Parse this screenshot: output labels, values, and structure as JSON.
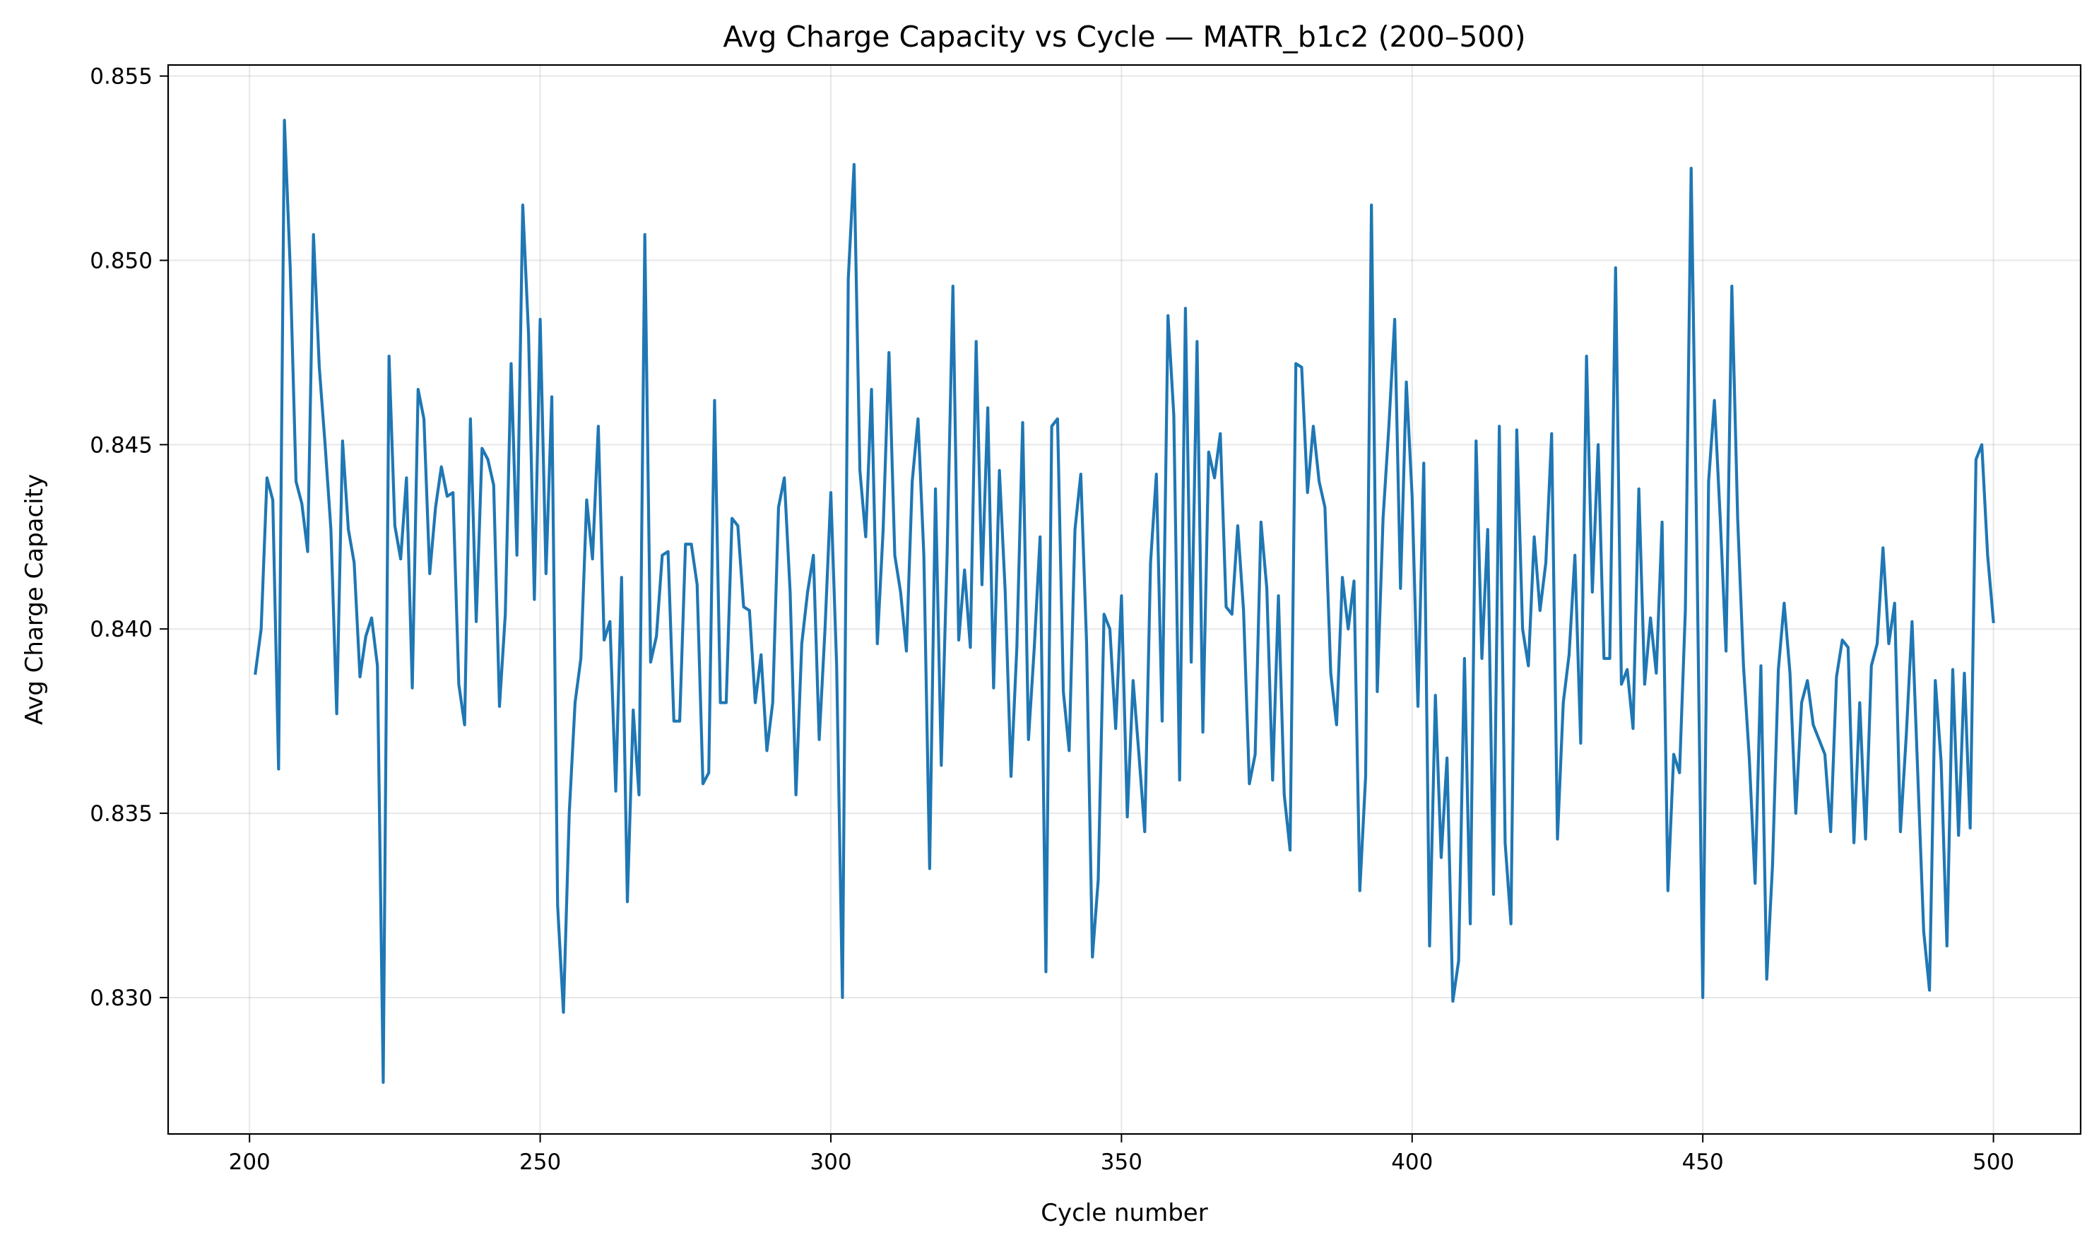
{
  "chart_data": {
    "type": "line",
    "title": "Avg Charge Capacity vs Cycle — MATR_b1c2 (200–500)",
    "xlabel": "Cycle number",
    "ylabel": "Avg Charge Capacity",
    "xlim": [
      186,
      515
    ],
    "ylim": [
      0.8263,
      0.8553
    ],
    "xticks": [
      200,
      250,
      300,
      350,
      400,
      450,
      500
    ],
    "xtick_labels": [
      "200",
      "250",
      "300",
      "350",
      "400",
      "450",
      "500"
    ],
    "yticks": [
      0.83,
      0.835,
      0.84,
      0.845,
      0.85,
      0.855
    ],
    "ytick_labels": [
      "0.830",
      "0.835",
      "0.840",
      "0.845",
      "0.850",
      "0.855"
    ],
    "grid": true,
    "legend": "none",
    "series": [
      {
        "color": "#1f77b4",
        "x_start": 201,
        "x_step": 1,
        "values": [
          0.8388,
          0.84,
          0.8441,
          0.8435,
          0.8362,
          0.8538,
          0.8498,
          0.844,
          0.8434,
          0.8421,
          0.8507,
          0.8471,
          0.845,
          0.8427,
          0.8377,
          0.8451,
          0.8427,
          0.8418,
          0.8387,
          0.8398,
          0.8403,
          0.839,
          0.8277,
          0.8474,
          0.8428,
          0.8419,
          0.8441,
          0.8384,
          0.8465,
          0.8457,
          0.8415,
          0.8433,
          0.8444,
          0.8436,
          0.8437,
          0.8385,
          0.8374,
          0.8457,
          0.8402,
          0.8449,
          0.8446,
          0.8439,
          0.8379,
          0.8404,
          0.8472,
          0.842,
          0.8515,
          0.848,
          0.8408,
          0.8484,
          0.8415,
          0.8463,
          0.8325,
          0.8296,
          0.835,
          0.838,
          0.8392,
          0.8435,
          0.8419,
          0.8455,
          0.8397,
          0.8402,
          0.8356,
          0.8414,
          0.8326,
          0.8378,
          0.8355,
          0.8507,
          0.8391,
          0.8398,
          0.842,
          0.8421,
          0.8375,
          0.8375,
          0.8423,
          0.8423,
          0.8412,
          0.8358,
          0.8361,
          0.8462,
          0.838,
          0.838,
          0.843,
          0.8428,
          0.8406,
          0.8405,
          0.838,
          0.8393,
          0.8367,
          0.838,
          0.8433,
          0.8441,
          0.841,
          0.8355,
          0.8396,
          0.841,
          0.842,
          0.837,
          0.84,
          0.8437,
          0.839,
          0.83,
          0.8495,
          0.8526,
          0.8443,
          0.8425,
          0.8465,
          0.8396,
          0.8427,
          0.8475,
          0.842,
          0.841,
          0.8394,
          0.844,
          0.8457,
          0.842,
          0.8335,
          0.8438,
          0.8363,
          0.842,
          0.8493,
          0.8397,
          0.8416,
          0.8395,
          0.8478,
          0.8412,
          0.846,
          0.8384,
          0.8443,
          0.841,
          0.836,
          0.8395,
          0.8456,
          0.837,
          0.8395,
          0.8425,
          0.8307,
          0.8455,
          0.8457,
          0.8383,
          0.8367,
          0.8427,
          0.8442,
          0.8396,
          0.8311,
          0.8332,
          0.8404,
          0.84,
          0.8373,
          0.8409,
          0.8349,
          0.8386,
          0.8366,
          0.8345,
          0.8418,
          0.8442,
          0.8375,
          0.8485,
          0.8458,
          0.8359,
          0.8487,
          0.8391,
          0.8478,
          0.8372,
          0.8448,
          0.8441,
          0.8453,
          0.8406,
          0.8404,
          0.8428,
          0.8405,
          0.8358,
          0.8366,
          0.8429,
          0.8411,
          0.8359,
          0.8409,
          0.8355,
          0.834,
          0.8472,
          0.8471,
          0.8437,
          0.8455,
          0.844,
          0.8433,
          0.8388,
          0.8374,
          0.8414,
          0.84,
          0.8413,
          0.8329,
          0.836,
          0.8515,
          0.8383,
          0.843,
          0.8455,
          0.8484,
          0.8411,
          0.8467,
          0.8436,
          0.8379,
          0.8445,
          0.8314,
          0.8382,
          0.8338,
          0.8365,
          0.8299,
          0.831,
          0.8392,
          0.832,
          0.8451,
          0.8392,
          0.8427,
          0.8328,
          0.8455,
          0.8342,
          0.832,
          0.8454,
          0.84,
          0.839,
          0.8425,
          0.8405,
          0.8418,
          0.8453,
          0.8343,
          0.838,
          0.8393,
          0.842,
          0.8369,
          0.8474,
          0.841,
          0.845,
          0.8392,
          0.8392,
          0.8498,
          0.8385,
          0.8389,
          0.8373,
          0.8438,
          0.8385,
          0.8403,
          0.8388,
          0.8429,
          0.8329,
          0.8366,
          0.8361,
          0.8405,
          0.8525,
          0.842,
          0.83,
          0.844,
          0.8462,
          0.843,
          0.8394,
          0.8493,
          0.843,
          0.839,
          0.8365,
          0.8331,
          0.839,
          0.8305,
          0.8336,
          0.8389,
          0.8407,
          0.8388,
          0.835,
          0.838,
          0.8386,
          0.8374,
          0.837,
          0.8366,
          0.8345,
          0.8387,
          0.8397,
          0.8395,
          0.8342,
          0.838,
          0.8343,
          0.839,
          0.8396,
          0.8422,
          0.8396,
          0.8407,
          0.8345,
          0.8371,
          0.8402,
          0.836,
          0.8318,
          0.8302,
          0.8386,
          0.8364,
          0.8314,
          0.8389,
          0.8344,
          0.8388,
          0.8346,
          0.8446,
          0.845,
          0.842,
          0.8402
        ]
      }
    ]
  }
}
